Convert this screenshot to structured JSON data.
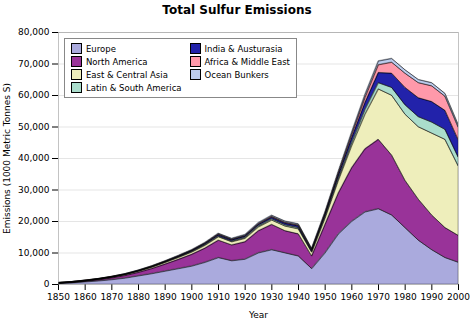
{
  "chart_data": {
    "type": "area",
    "stacked": true,
    "title": "Total Sulfur Emissions",
    "xlabel": "Year",
    "ylabel": "Emissions (1000 Metric Tonnes S)",
    "x": [
      1850,
      1855,
      1860,
      1865,
      1870,
      1875,
      1880,
      1885,
      1890,
      1895,
      1900,
      1905,
      1910,
      1915,
      1920,
      1925,
      1930,
      1935,
      1940,
      1945,
      1950,
      1955,
      1960,
      1965,
      1970,
      1975,
      1980,
      1985,
      1990,
      1995,
      2000
    ],
    "series": [
      {
        "name": "Europe",
        "color": "#aaaadd",
        "values": [
          300,
          500,
          800,
          1100,
          1500,
          2000,
          2700,
          3400,
          4200,
          5000,
          5800,
          7000,
          8500,
          7500,
          8000,
          10000,
          11000,
          10000,
          9000,
          5000,
          10000,
          16000,
          20000,
          23000,
          24000,
          22000,
          18000,
          14000,
          11000,
          8500,
          7000
        ]
      },
      {
        "name": "North America",
        "color": "#993399",
        "values": [
          50,
          100,
          200,
          350,
          550,
          800,
          1100,
          1600,
          2200,
          2900,
          3700,
          4500,
          5500,
          5000,
          5500,
          7000,
          8000,
          7000,
          7000,
          4000,
          9000,
          13000,
          17000,
          20000,
          22000,
          19000,
          15000,
          13000,
          11000,
          9500,
          8500
        ]
      },
      {
        "name": "East & Central Asia",
        "color": "#eeeebb",
        "values": [
          100,
          130,
          160,
          200,
          250,
          300,
          380,
          450,
          550,
          650,
          750,
          900,
          1100,
          1000,
          1100,
          1200,
          1400,
          1500,
          1600,
          1200,
          2000,
          4000,
          7000,
          11000,
          16000,
          19000,
          21000,
          23000,
          26000,
          28000,
          22000
        ]
      },
      {
        "name": "Latin & South America",
        "color": "#aaddcc",
        "values": [
          10,
          15,
          20,
          25,
          35,
          45,
          60,
          80,
          100,
          130,
          160,
          200,
          250,
          250,
          300,
          350,
          400,
          400,
          400,
          300,
          500,
          700,
          1000,
          1500,
          2000,
          2500,
          3000,
          3200,
          3500,
          3200,
          2800
        ]
      },
      {
        "name": "India & Austurasia",
        "color": "#2222aa",
        "values": [
          20,
          30,
          40,
          55,
          70,
          90,
          110,
          140,
          175,
          220,
          270,
          330,
          400,
          380,
          400,
          450,
          500,
          520,
          540,
          400,
          700,
          1000,
          1500,
          2200,
          3200,
          4500,
          5500,
          6000,
          6500,
          6000,
          5500
        ]
      },
      {
        "name": "Africa & Middle East",
        "color": "#ff99aa",
        "values": [
          10,
          15,
          20,
          25,
          30,
          40,
          50,
          65,
          80,
          100,
          120,
          150,
          190,
          180,
          200,
          220,
          250,
          270,
          280,
          220,
          350,
          600,
          1000,
          1600,
          2500,
          3500,
          4500,
          4800,
          5000,
          4500,
          4000
        ]
      },
      {
        "name": "Ocean Bunkers",
        "color": "#bbccee",
        "values": [
          10,
          15,
          20,
          30,
          40,
          50,
          70,
          90,
          110,
          140,
          170,
          210,
          260,
          260,
          300,
          350,
          380,
          380,
          380,
          280,
          400,
          600,
          800,
          1000,
          1200,
          1200,
          1100,
          1000,
          1000,
          900,
          800
        ]
      }
    ],
    "xlim": [
      1850,
      2000
    ],
    "xticks": [
      1850,
      1860,
      1870,
      1880,
      1890,
      1900,
      1910,
      1920,
      1930,
      1940,
      1950,
      1960,
      1970,
      1980,
      1990,
      2000
    ],
    "ylim": [
      0,
      80000
    ],
    "yticks": [
      0,
      {
        "value": 10000,
        "label": "10,000"
      },
      {
        "value": 20000,
        "label": "20,000"
      },
      {
        "value": 30000,
        "label": "30,000"
      },
      {
        "value": 40000,
        "label": "40,000"
      },
      {
        "value": 50000,
        "label": "50,000"
      },
      {
        "value": 60000,
        "label": "60,000"
      },
      {
        "value": 70000,
        "label": "70,000"
      },
      {
        "value": 80000,
        "label": "80,000"
      }
    ],
    "grid": "y",
    "legend": "upper left"
  }
}
